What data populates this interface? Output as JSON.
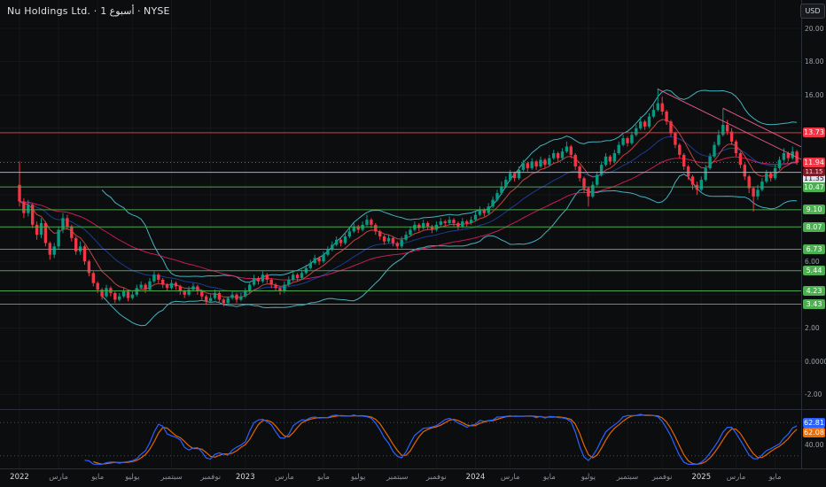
{
  "header": {
    "title": "Nu Holdings Ltd. · أسبوع 1 · NYSE",
    "currency": "USD"
  },
  "colors": {
    "bg": "#0c0d0e",
    "up": "#089981",
    "down": "#f23645",
    "band": "#4dd0e1",
    "ema_fast": "#ef5350",
    "ema_mid": "#2962ff",
    "ema_long": "#e91e63",
    "support": "#4caf50",
    "resistance": "#f23645",
    "level_line": "#b2b5be",
    "stoch_k": "#2962ff",
    "stoch_d": "#ef6c00",
    "separator": "#2a2e39",
    "trend": "#f06292",
    "axis_text": "#9aa0aa",
    "grid": "#ffffff"
  },
  "price_axis": {
    "ticks": [
      {
        "label": "20.00",
        "price": 20
      },
      {
        "label": "18.00",
        "price": 18
      },
      {
        "label": "16.00",
        "price": 16
      },
      {
        "label": "6.00",
        "price": 6
      },
      {
        "label": "2.00",
        "price": 2
      },
      {
        "label": "0.0000",
        "price": 0
      },
      {
        "label": "-2.00",
        "price": -2
      }
    ],
    "badges": [
      {
        "label": "13.73",
        "price": 13.73,
        "bg": "#f23645",
        "fg": "#ffffff",
        "dy": 0
      },
      {
        "label": "11.94",
        "price": 11.94,
        "bg": "#f23645",
        "fg": "#ffffff",
        "dy": 0
      },
      {
        "label": "11.35",
        "price": 11.35,
        "bg": "#e0e3eb",
        "fg": "#131722",
        "dy": 7
      },
      {
        "label": "10.47",
        "price": 10.47,
        "bg": "#4caf50",
        "fg": "#ffffff",
        "dy": 0
      },
      {
        "label": "9.10",
        "price": 9.1,
        "bg": "#4caf50",
        "fg": "#ffffff",
        "dy": 0
      },
      {
        "label": "8.07",
        "price": 8.07,
        "bg": "#4caf50",
        "fg": "#ffffff",
        "dy": 0
      },
      {
        "label": "6.73",
        "price": 6.73,
        "bg": "#4caf50",
        "fg": "#ffffff",
        "dy": 0
      },
      {
        "label": "5.44",
        "price": 5.44,
        "bg": "#4caf50",
        "fg": "#ffffff",
        "dy": 0
      },
      {
        "label": "4.23",
        "price": 4.23,
        "bg": "#4caf50",
        "fg": "#ffffff",
        "dy": 0
      },
      {
        "label": "3.43",
        "price": 3.43,
        "bg": "#4caf50",
        "fg": "#ffffff",
        "dy": 0
      }
    ],
    "countdown": {
      "label": "11.15",
      "price": 11.94
    }
  },
  "chart_data": {
    "type": "candlestick",
    "title": "Nu Holdings Ltd. weekly candlestick chart (NYSE, USD)",
    "ylabel": "Price (USD)",
    "ylim": [
      -2.8,
      21.7
    ],
    "last_price": 11.94,
    "x_axis_labels": [
      {
        "text": "2022",
        "week": 0,
        "year": true
      },
      {
        "text": "مارس",
        "week": 9
      },
      {
        "text": "مايو",
        "week": 18
      },
      {
        "text": "يوليو",
        "week": 26
      },
      {
        "text": "سبتمبر",
        "week": 35
      },
      {
        "text": "نوفمبر",
        "week": 44
      },
      {
        "text": "2023",
        "week": 52,
        "year": true
      },
      {
        "text": "مارس",
        "week": 61
      },
      {
        "text": "مايو",
        "week": 70
      },
      {
        "text": "يوليو",
        "week": 78
      },
      {
        "text": "سبتمبر",
        "week": 87
      },
      {
        "text": "نوفمبر",
        "week": 96
      },
      {
        "text": "2024",
        "week": 105,
        "year": true
      },
      {
        "text": "مارس",
        "week": 113
      },
      {
        "text": "مايو",
        "week": 122
      },
      {
        "text": "يوليو",
        "week": 131
      },
      {
        "text": "سبتمبر",
        "week": 140
      },
      {
        "text": "نوفمبر",
        "week": 148
      },
      {
        "text": "2025",
        "week": 157,
        "year": true
      },
      {
        "text": "مارس",
        "week": 165
      },
      {
        "text": "مايو",
        "week": 174
      }
    ],
    "horizontal_lines": [
      {
        "price": 13.73,
        "color": "#f23645",
        "style": "solid"
      },
      {
        "price": 11.94,
        "color": "#f23645",
        "style": "dotted"
      },
      {
        "price": 11.35,
        "color": "#b2b5be",
        "style": "solid"
      },
      {
        "price": 10.47,
        "color": "#4caf50",
        "style": "solid"
      },
      {
        "price": 9.1,
        "color": "#4caf50",
        "style": "solid"
      },
      {
        "price": 8.07,
        "color": "#4caf50",
        "style": "solid"
      },
      {
        "price": 6.73,
        "color": "#4caf50",
        "style": "solid"
      },
      {
        "price": 5.44,
        "color": "#4caf50",
        "style": "solid"
      },
      {
        "price": 4.23,
        "color": "#4caf50",
        "style": "solid"
      },
      {
        "price": 3.43,
        "color": "#4caf50",
        "style": "solid"
      }
    ],
    "trend_lines": [
      {
        "w1": 147,
        "p1": 16.35,
        "w2": 181,
        "p2": 12.0
      },
      {
        "w1": 162,
        "p1": 15.2,
        "w2": 181,
        "p2": 12.75
      }
    ],
    "overlays": {
      "bollinger": {
        "period": 20,
        "mult": 2
      },
      "ema_fast": 8,
      "ema_mid": 21,
      "ema_long": 45
    },
    "indicator": {
      "name": "stochastic",
      "k_period": 14,
      "k_smooth": 3,
      "d_period": 3,
      "levels": [
        80,
        20
      ],
      "badges": [
        {
          "label": "62.81",
          "value": 62.81,
          "bg": "#2962ff",
          "dy": -11
        },
        {
          "label": "62.08",
          "value": 62.08,
          "bg": "#ef6c00",
          "dy": 0
        }
      ],
      "ticks": [
        {
          "label": "40.00",
          "value": 40
        }
      ]
    },
    "candles": [
      [
        10.6,
        12.0,
        9.3,
        9.6
      ],
      [
        9.6,
        9.8,
        8.6,
        8.9
      ],
      [
        8.9,
        9.7,
        8.7,
        9.4
      ],
      [
        9.4,
        9.5,
        8.0,
        8.2
      ],
      [
        8.2,
        8.4,
        7.3,
        7.6
      ],
      [
        7.6,
        8.6,
        7.4,
        8.3
      ],
      [
        8.3,
        8.4,
        6.9,
        7.1
      ],
      [
        7.1,
        7.2,
        6.1,
        6.4
      ],
      [
        6.4,
        7.1,
        6.2,
        6.9
      ],
      [
        6.9,
        8.1,
        6.7,
        7.9
      ],
      [
        7.9,
        8.9,
        7.7,
        8.6
      ],
      [
        8.6,
        8.8,
        7.9,
        8.1
      ],
      [
        8.1,
        8.2,
        7.2,
        7.4
      ],
      [
        7.4,
        7.5,
        6.4,
        6.6
      ],
      [
        6.6,
        7.2,
        6.4,
        6.9
      ],
      [
        6.9,
        7.0,
        5.8,
        6.0
      ],
      [
        6.0,
        6.1,
        5.1,
        5.3
      ],
      [
        5.3,
        5.4,
        4.5,
        4.7
      ],
      [
        4.7,
        4.8,
        4.1,
        4.3
      ],
      [
        4.3,
        4.4,
        3.7,
        3.9
      ],
      [
        3.9,
        4.6,
        3.8,
        4.4
      ],
      [
        4.4,
        4.5,
        3.9,
        4.1
      ],
      [
        4.1,
        4.2,
        3.5,
        3.7
      ],
      [
        3.7,
        4.1,
        3.6,
        3.9
      ],
      [
        3.9,
        4.4,
        3.8,
        4.2
      ],
      [
        4.2,
        4.3,
        3.6,
        3.8
      ],
      [
        3.8,
        4.2,
        3.7,
        4.0
      ],
      [
        4.0,
        4.6,
        3.9,
        4.4
      ],
      [
        4.4,
        4.8,
        4.3,
        4.6
      ],
      [
        4.6,
        4.7,
        4.1,
        4.3
      ],
      [
        4.3,
        5.0,
        4.2,
        4.8
      ],
      [
        4.8,
        5.4,
        4.7,
        5.2
      ],
      [
        5.2,
        5.3,
        4.7,
        4.9
      ],
      [
        4.9,
        5.0,
        4.4,
        4.6
      ],
      [
        4.6,
        4.7,
        4.2,
        4.4
      ],
      [
        4.4,
        4.9,
        4.3,
        4.7
      ],
      [
        4.7,
        4.8,
        4.3,
        4.5
      ],
      [
        4.5,
        4.6,
        4.0,
        4.2
      ],
      [
        4.2,
        4.3,
        3.8,
        4.0
      ],
      [
        4.0,
        4.5,
        3.9,
        4.3
      ],
      [
        4.3,
        4.7,
        4.2,
        4.5
      ],
      [
        4.5,
        4.6,
        4.0,
        4.2
      ],
      [
        4.2,
        4.3,
        3.7,
        3.9
      ],
      [
        3.9,
        4.0,
        3.4,
        3.6
      ],
      [
        3.6,
        4.0,
        3.5,
        3.8
      ],
      [
        3.8,
        4.3,
        3.7,
        4.1
      ],
      [
        4.1,
        4.2,
        3.5,
        3.7
      ],
      [
        3.7,
        3.8,
        3.3,
        3.5
      ],
      [
        3.5,
        3.9,
        3.4,
        3.8
      ],
      [
        3.8,
        4.2,
        3.7,
        4.0
      ],
      [
        4.0,
        4.1,
        3.5,
        3.7
      ],
      [
        3.7,
        4.1,
        3.6,
        3.9
      ],
      [
        3.9,
        4.4,
        3.8,
        4.2
      ],
      [
        4.2,
        4.8,
        4.1,
        4.6
      ],
      [
        4.6,
        5.2,
        4.5,
        5.0
      ],
      [
        5.0,
        5.1,
        4.6,
        4.8
      ],
      [
        4.8,
        5.4,
        4.7,
        5.2
      ],
      [
        5.2,
        5.3,
        4.7,
        4.9
      ],
      [
        4.9,
        5.0,
        4.4,
        4.6
      ],
      [
        4.6,
        4.7,
        4.2,
        4.4
      ],
      [
        4.4,
        4.5,
        4.0,
        4.2
      ],
      [
        4.2,
        4.8,
        4.1,
        4.6
      ],
      [
        4.6,
        5.1,
        4.5,
        4.9
      ],
      [
        4.9,
        5.4,
        4.8,
        5.2
      ],
      [
        5.2,
        5.3,
        4.8,
        5.0
      ],
      [
        5.0,
        5.5,
        4.9,
        5.3
      ],
      [
        5.3,
        5.8,
        5.2,
        5.6
      ],
      [
        5.6,
        6.1,
        5.5,
        5.9
      ],
      [
        5.9,
        6.4,
        5.8,
        6.2
      ],
      [
        6.2,
        6.3,
        5.8,
        6.0
      ],
      [
        6.0,
        6.6,
        5.9,
        6.4
      ],
      [
        6.4,
        6.9,
        6.3,
        6.7
      ],
      [
        6.7,
        7.2,
        6.6,
        7.0
      ],
      [
        7.0,
        7.5,
        6.9,
        7.3
      ],
      [
        7.3,
        7.4,
        6.9,
        7.1
      ],
      [
        7.1,
        7.7,
        7.0,
        7.5
      ],
      [
        7.5,
        8.0,
        7.4,
        7.8
      ],
      [
        7.8,
        8.3,
        7.7,
        8.1
      ],
      [
        8.1,
        8.2,
        7.7,
        7.9
      ],
      [
        7.9,
        8.4,
        7.8,
        8.2
      ],
      [
        8.2,
        8.8,
        8.1,
        8.5
      ],
      [
        8.5,
        8.6,
        8.0,
        8.2
      ],
      [
        8.2,
        8.3,
        7.6,
        7.8
      ],
      [
        7.8,
        7.9,
        7.3,
        7.5
      ],
      [
        7.5,
        7.6,
        7.0,
        7.2
      ],
      [
        7.2,
        7.6,
        7.1,
        7.4
      ],
      [
        7.4,
        7.5,
        6.9,
        7.1
      ],
      [
        7.1,
        7.2,
        6.7,
        6.9
      ],
      [
        6.9,
        7.5,
        6.8,
        7.3
      ],
      [
        7.3,
        7.8,
        7.2,
        7.6
      ],
      [
        7.6,
        8.1,
        7.5,
        7.9
      ],
      [
        7.9,
        8.4,
        7.8,
        8.2
      ],
      [
        8.2,
        8.3,
        7.8,
        8.0
      ],
      [
        8.0,
        8.5,
        7.9,
        8.3
      ],
      [
        8.3,
        8.4,
        7.9,
        8.1
      ],
      [
        8.1,
        8.2,
        7.7,
        7.9
      ],
      [
        7.9,
        8.4,
        7.8,
        8.2
      ],
      [
        8.2,
        8.6,
        8.1,
        8.4
      ],
      [
        8.4,
        8.5,
        8.1,
        8.3
      ],
      [
        8.3,
        8.7,
        8.2,
        8.5
      ],
      [
        8.5,
        8.6,
        8.1,
        8.3
      ],
      [
        8.3,
        8.4,
        7.9,
        8.1
      ],
      [
        8.1,
        8.6,
        8.0,
        8.4
      ],
      [
        8.4,
        8.5,
        8.1,
        8.3
      ],
      [
        8.3,
        8.7,
        8.2,
        8.5
      ],
      [
        8.5,
        9.0,
        8.4,
        8.8
      ],
      [
        8.8,
        9.3,
        8.7,
        9.1
      ],
      [
        9.1,
        9.2,
        8.7,
        8.9
      ],
      [
        8.9,
        9.5,
        8.8,
        9.3
      ],
      [
        9.3,
        9.9,
        9.2,
        9.7
      ],
      [
        9.7,
        10.3,
        9.6,
        10.1
      ],
      [
        10.1,
        10.8,
        10.0,
        10.5
      ],
      [
        10.5,
        11.1,
        10.4,
        10.9
      ],
      [
        10.9,
        11.5,
        10.8,
        11.3
      ],
      [
        11.3,
        11.4,
        10.8,
        11.0
      ],
      [
        11.0,
        11.7,
        10.9,
        11.5
      ],
      [
        11.5,
        12.1,
        11.4,
        11.9
      ],
      [
        11.9,
        12.0,
        11.4,
        11.6
      ],
      [
        11.6,
        12.2,
        11.5,
        12.0
      ],
      [
        12.0,
        12.1,
        11.5,
        11.7
      ],
      [
        11.7,
        12.3,
        11.6,
        12.1
      ],
      [
        12.1,
        12.2,
        11.6,
        11.8
      ],
      [
        11.8,
        12.4,
        11.7,
        12.2
      ],
      [
        12.2,
        12.7,
        12.1,
        12.5
      ],
      [
        12.5,
        12.6,
        12.0,
        12.2
      ],
      [
        12.2,
        12.8,
        12.1,
        12.6
      ],
      [
        12.6,
        13.2,
        12.5,
        12.9
      ],
      [
        12.9,
        13.0,
        12.2,
        12.4
      ],
      [
        12.4,
        12.5,
        11.5,
        11.7
      ],
      [
        11.7,
        11.8,
        10.8,
        11.0
      ],
      [
        11.0,
        11.1,
        10.1,
        10.4
      ],
      [
        10.4,
        10.5,
        9.3,
        9.9
      ],
      [
        9.9,
        10.8,
        9.8,
        10.6
      ],
      [
        10.6,
        11.4,
        10.5,
        11.2
      ],
      [
        11.2,
        12.0,
        11.1,
        11.8
      ],
      [
        11.8,
        12.5,
        11.7,
        12.3
      ],
      [
        12.3,
        12.4,
        11.8,
        12.0
      ],
      [
        12.0,
        12.7,
        11.9,
        12.5
      ],
      [
        12.5,
        13.2,
        12.4,
        13.0
      ],
      [
        13.0,
        13.6,
        12.9,
        13.4
      ],
      [
        13.4,
        13.5,
        12.9,
        13.1
      ],
      [
        13.1,
        13.8,
        13.0,
        13.6
      ],
      [
        13.6,
        14.2,
        13.5,
        14.0
      ],
      [
        14.0,
        14.7,
        13.9,
        14.4
      ],
      [
        14.4,
        14.5,
        13.9,
        14.1
      ],
      [
        14.1,
        14.9,
        14.0,
        14.7
      ],
      [
        14.7,
        15.4,
        14.6,
        15.1
      ],
      [
        15.1,
        16.4,
        15.0,
        15.5
      ],
      [
        15.5,
        15.9,
        14.8,
        15.0
      ],
      [
        15.0,
        15.1,
        14.2,
        14.4
      ],
      [
        14.4,
        14.5,
        13.5,
        13.7
      ],
      [
        13.7,
        13.8,
        12.8,
        13.0
      ],
      [
        13.0,
        13.1,
        12.2,
        12.4
      ],
      [
        12.4,
        12.5,
        11.5,
        11.7
      ],
      [
        11.7,
        11.8,
        10.9,
        11.1
      ],
      [
        11.1,
        11.2,
        10.3,
        10.6
      ],
      [
        10.6,
        10.8,
        10.0,
        10.3
      ],
      [
        10.3,
        11.1,
        10.2,
        10.9
      ],
      [
        10.9,
        11.8,
        10.8,
        11.6
      ],
      [
        11.6,
        12.5,
        11.5,
        12.3
      ],
      [
        12.3,
        13.2,
        12.2,
        13.0
      ],
      [
        13.0,
        13.9,
        12.9,
        13.6
      ],
      [
        13.6,
        15.2,
        13.5,
        14.2
      ],
      [
        14.2,
        14.5,
        13.6,
        13.8
      ],
      [
        13.8,
        14.0,
        13.0,
        13.2
      ],
      [
        13.2,
        13.3,
        12.3,
        12.5
      ],
      [
        12.5,
        12.6,
        11.6,
        11.8
      ],
      [
        11.8,
        11.9,
        10.9,
        11.1
      ],
      [
        11.1,
        11.2,
        10.1,
        10.4
      ],
      [
        10.4,
        10.5,
        9.0,
        9.9
      ],
      [
        9.9,
        10.6,
        9.7,
        10.3
      ],
      [
        10.3,
        11.0,
        10.2,
        10.8
      ],
      [
        10.8,
        11.5,
        10.7,
        11.3
      ],
      [
        11.3,
        11.4,
        10.8,
        11.0
      ],
      [
        11.0,
        11.8,
        10.9,
        11.6
      ],
      [
        11.6,
        12.3,
        11.5,
        12.1
      ],
      [
        12.1,
        12.8,
        12.0,
        12.5
      ],
      [
        12.5,
        12.6,
        12.0,
        12.2
      ],
      [
        12.2,
        12.9,
        12.1,
        12.6
      ],
      [
        12.6,
        12.7,
        11.8,
        11.94
      ]
    ]
  }
}
